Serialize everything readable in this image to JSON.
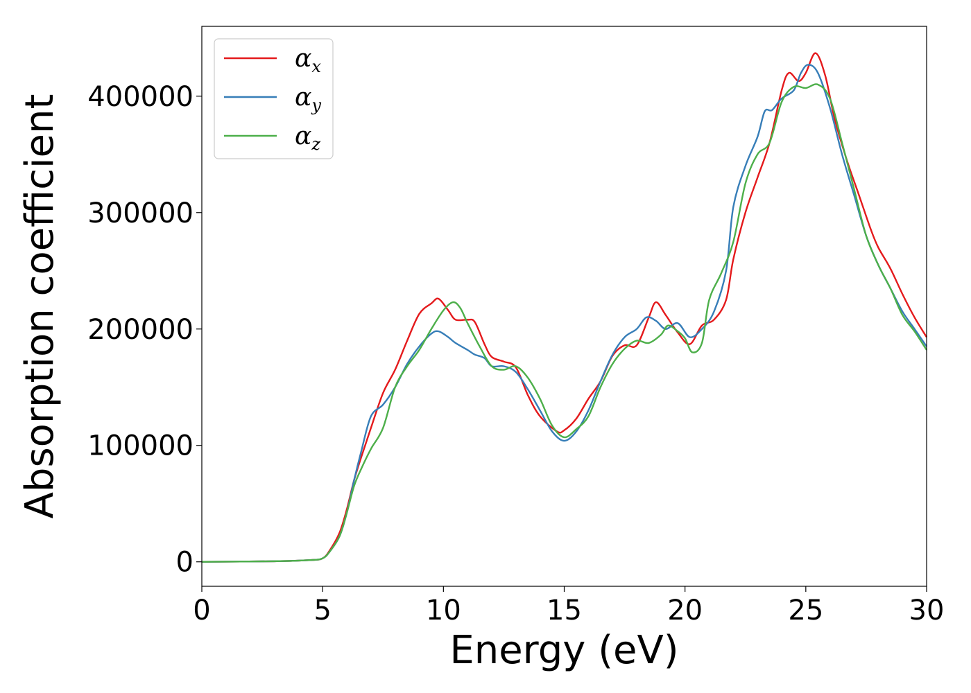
{
  "chart_data": {
    "type": "line",
    "xlabel": "Energy (eV)",
    "ylabel": "Absorption coefficient",
    "xlim": [
      0,
      30
    ],
    "ylim": [
      -21000,
      460000
    ],
    "xticks": [
      "0",
      "5",
      "10",
      "15",
      "20",
      "25",
      "30"
    ],
    "yticks": [
      "0",
      "100000",
      "200000",
      "300000",
      "400000"
    ],
    "grid": false,
    "legend_position": "top-left",
    "series": [
      {
        "name": "α_x",
        "base": "α",
        "sub": "x",
        "color": "#e41a1c",
        "x": [
          0,
          3,
          4.5,
          5,
          5.3,
          5.7,
          6,
          6.3,
          6.6,
          7,
          7.5,
          8,
          8.5,
          9,
          9.5,
          9.8,
          10.2,
          10.5,
          11,
          11.3,
          11.7,
          12,
          12.5,
          13,
          13.5,
          14,
          14.7,
          15,
          15.5,
          16,
          16.5,
          17,
          17.5,
          18,
          18.5,
          18.8,
          19.2,
          19.7,
          20.2,
          20.7,
          21.2,
          21.7,
          22,
          22.5,
          23,
          23.5,
          24,
          24.3,
          24.7,
          25,
          25.4,
          25.8,
          26.2,
          26.7,
          27.2,
          27.7,
          28,
          28.5,
          29,
          29.5,
          30
        ],
        "y": [
          0,
          500,
          1500,
          3000,
          10000,
          25000,
          45000,
          70000,
          90000,
          115000,
          145000,
          165000,
          190000,
          213000,
          222000,
          226000,
          216000,
          208000,
          208000,
          206000,
          187000,
          176000,
          172000,
          167000,
          143000,
          125000,
          112000,
          113000,
          123000,
          140000,
          155000,
          177000,
          186000,
          186000,
          210000,
          223000,
          212000,
          197000,
          187000,
          203000,
          208000,
          225000,
          260000,
          300000,
          330000,
          360000,
          405000,
          420000,
          413000,
          420000,
          437000,
          418000,
          380000,
          345000,
          315000,
          285000,
          270000,
          252000,
          230000,
          210000,
          193000
        ]
      },
      {
        "name": "α_y",
        "base": "α",
        "sub": "y",
        "color": "#377eb8",
        "x": [
          0,
          3,
          4.5,
          5,
          5.3,
          5.7,
          6,
          6.3,
          6.6,
          7,
          7.5,
          8,
          8.5,
          9,
          9.5,
          9.8,
          10.2,
          10.5,
          11,
          11.3,
          11.7,
          12,
          12.5,
          13,
          13.5,
          14,
          14.5,
          15,
          15.5,
          16,
          16.5,
          17,
          17.5,
          18,
          18.4,
          18.8,
          19.2,
          19.7,
          20.2,
          20.7,
          21.2,
          21.7,
          22,
          22.5,
          23,
          23.3,
          23.6,
          24,
          24.5,
          24.8,
          25.1,
          25.5,
          26,
          26.5,
          27,
          27.5,
          28,
          28.5,
          29,
          29.5,
          30
        ],
        "y": [
          0,
          500,
          1500,
          3000,
          9000,
          22000,
          42000,
          70000,
          95000,
          125000,
          135000,
          150000,
          170000,
          185000,
          196000,
          198000,
          193000,
          188000,
          182000,
          178000,
          175000,
          168000,
          168000,
          163000,
          148000,
          130000,
          112000,
          104000,
          112000,
          130000,
          155000,
          178000,
          193000,
          200000,
          210000,
          207000,
          200000,
          205000,
          193000,
          200000,
          215000,
          250000,
          305000,
          340000,
          365000,
          387000,
          388000,
          398000,
          405000,
          420000,
          427000,
          420000,
          390000,
          350000,
          315000,
          280000,
          255000,
          235000,
          215000,
          200000,
          185000
        ]
      },
      {
        "name": "α_z",
        "base": "α",
        "sub": "z",
        "color": "#4daf4a",
        "x": [
          0,
          3,
          4.5,
          5,
          5.3,
          5.7,
          6,
          6.3,
          6.6,
          7,
          7.5,
          8,
          8.5,
          9,
          9.5,
          10,
          10.4,
          10.7,
          11,
          11.5,
          12,
          12.5,
          13,
          13.5,
          14,
          14.5,
          15,
          15.5,
          16,
          16.5,
          17,
          17.5,
          18,
          18.5,
          19,
          19.3,
          19.7,
          20,
          20.3,
          20.7,
          21,
          21.5,
          22,
          22.5,
          23,
          23.5,
          24,
          24.5,
          25,
          25.5,
          26,
          26.5,
          27,
          27.5,
          28,
          28.5,
          29,
          29.5,
          30
        ],
        "y": [
          0,
          500,
          1500,
          3000,
          9000,
          22000,
          42000,
          65000,
          80000,
          97000,
          115000,
          150000,
          168000,
          182000,
          200000,
          216000,
          223000,
          218000,
          205000,
          185000,
          168000,
          165000,
          168000,
          158000,
          140000,
          117000,
          107000,
          114000,
          125000,
          150000,
          170000,
          183000,
          190000,
          188000,
          195000,
          203000,
          198000,
          192000,
          180000,
          188000,
          225000,
          248000,
          275000,
          325000,
          350000,
          360000,
          395000,
          408000,
          407000,
          410000,
          398000,
          360000,
          320000,
          280000,
          255000,
          235000,
          212000,
          198000,
          182000
        ]
      }
    ]
  }
}
